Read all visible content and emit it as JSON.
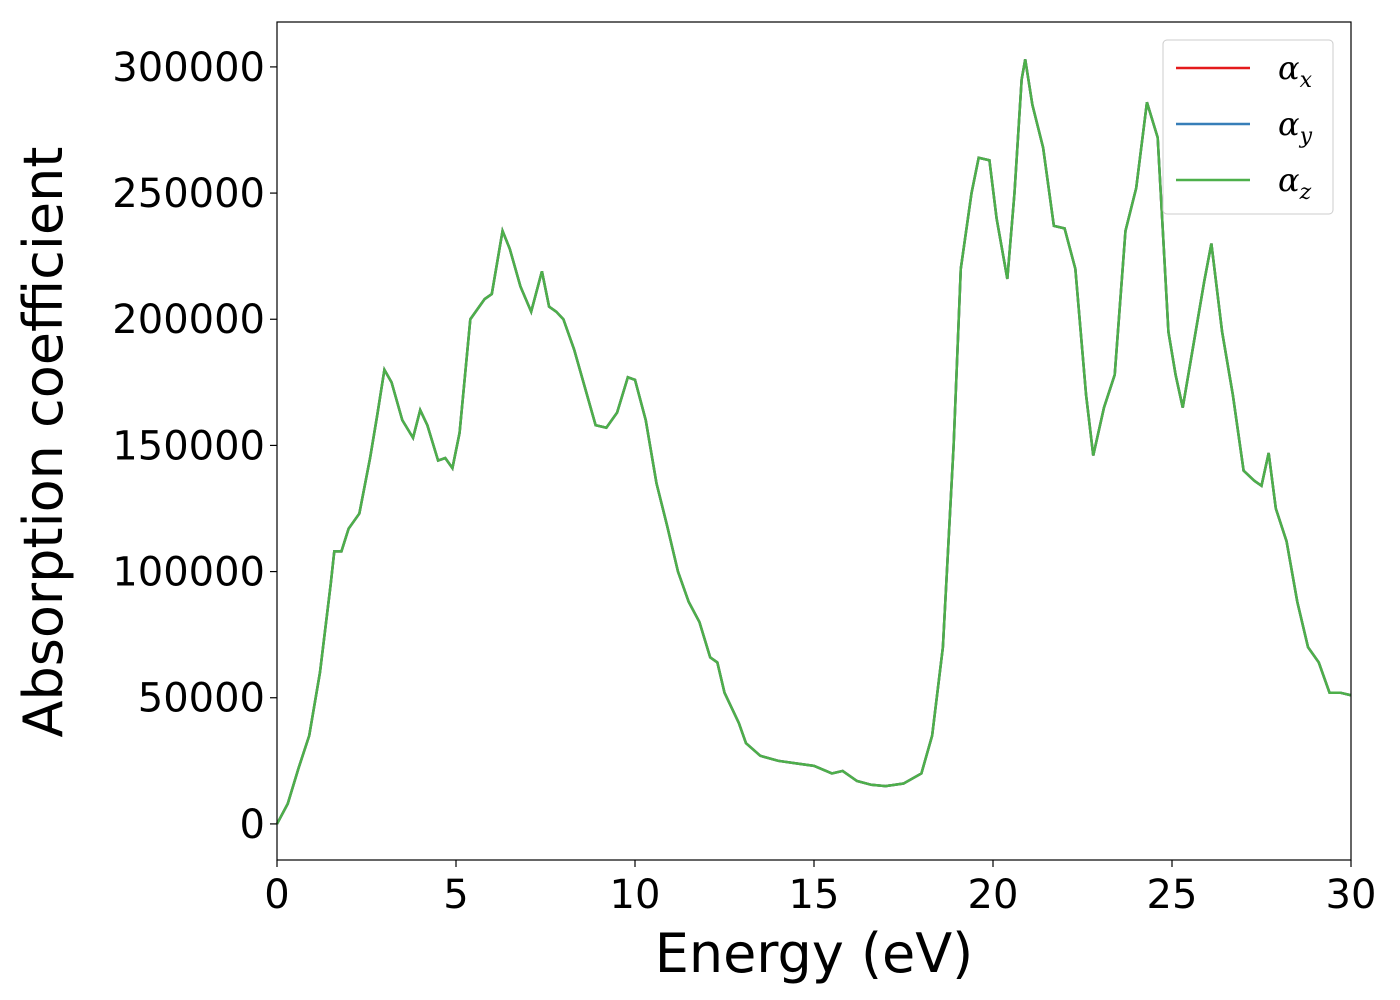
{
  "chart_data": {
    "type": "line",
    "xlabel": "Energy (eV)",
    "ylabel": "Absorption coefficient",
    "x": [
      0,
      0.3,
      0.6,
      0.9,
      1.2,
      1.5,
      1.6,
      1.8,
      2.0,
      2.3,
      2.6,
      2.8,
      3.0,
      3.2,
      3.5,
      3.8,
      4.0,
      4.2,
      4.5,
      4.7,
      4.9,
      5.1,
      5.4,
      5.6,
      5.8,
      6.0,
      6.3,
      6.5,
      6.8,
      7.1,
      7.4,
      7.6,
      7.8,
      8.0,
      8.3,
      8.6,
      8.9,
      9.2,
      9.5,
      9.8,
      10.0,
      10.3,
      10.6,
      10.9,
      11.2,
      11.5,
      11.8,
      12.1,
      12.3,
      12.5,
      12.9,
      13.1,
      13.5,
      14.0,
      14.5,
      15.0,
      15.5,
      15.8,
      16.2,
      16.6,
      17.0,
      17.5,
      18.0,
      18.3,
      18.6,
      18.9,
      19.1,
      19.4,
      19.6,
      19.9,
      20.1,
      20.4,
      20.6,
      20.8,
      20.9,
      21.1,
      21.4,
      21.7,
      22.0,
      22.3,
      22.6,
      22.8,
      23.1,
      23.4,
      23.7,
      24.0,
      24.3,
      24.6,
      24.9,
      25.1,
      25.3,
      25.6,
      25.9,
      26.1,
      26.4,
      26.7,
      27.0,
      27.3,
      27.5,
      27.7,
      27.9,
      28.2,
      28.5,
      28.8,
      29.1,
      29.4,
      29.7,
      30.0
    ],
    "series": [
      {
        "name": "αx",
        "color": "#e41a1c",
        "values": [
          0,
          8000,
          22000,
          35000,
          60000,
          95000,
          108000,
          108000,
          117000,
          123000,
          145000,
          162000,
          180000,
          175000,
          160000,
          153000,
          164000,
          158000,
          144000,
          145000,
          141000,
          155000,
          200000,
          204000,
          208000,
          210000,
          235000,
          228000,
          213000,
          203000,
          219000,
          205000,
          203000,
          200000,
          188000,
          173000,
          158000,
          157000,
          163000,
          177000,
          176000,
          160000,
          135000,
          118000,
          100000,
          88000,
          80000,
          66000,
          64000,
          52000,
          40000,
          32000,
          27000,
          25000,
          24000,
          23000,
          20000,
          21000,
          17000,
          15500,
          15000,
          16000,
          20000,
          35000,
          70000,
          150000,
          220000,
          250000,
          264000,
          263000,
          240000,
          216000,
          250000,
          295000,
          303000,
          285000,
          268000,
          237000,
          236000,
          220000,
          170000,
          146000,
          165000,
          178000,
          235000,
          252000,
          286000,
          272000,
          195000,
          178000,
          165000,
          190000,
          215000,
          230000,
          195000,
          170000,
          140000,
          136000,
          134000,
          147000,
          125000,
          112000,
          88000,
          70000,
          64000,
          52000,
          52000,
          51000
        ]
      },
      {
        "name": "αy",
        "color": "#377eb8",
        "values": [
          0,
          8000,
          22000,
          35000,
          60000,
          95000,
          108000,
          108000,
          117000,
          123000,
          145000,
          162000,
          180000,
          175000,
          160000,
          153000,
          164000,
          158000,
          144000,
          145000,
          141000,
          155000,
          200000,
          204000,
          208000,
          210000,
          235000,
          228000,
          213000,
          203000,
          219000,
          205000,
          203000,
          200000,
          188000,
          173000,
          158000,
          157000,
          163000,
          177000,
          176000,
          160000,
          135000,
          118000,
          100000,
          88000,
          80000,
          66000,
          64000,
          52000,
          40000,
          32000,
          27000,
          25000,
          24000,
          23000,
          20000,
          21000,
          17000,
          15500,
          15000,
          16000,
          20000,
          35000,
          70000,
          150000,
          220000,
          250000,
          264000,
          263000,
          240000,
          216000,
          250000,
          295000,
          303000,
          285000,
          268000,
          237000,
          236000,
          220000,
          170000,
          146000,
          165000,
          178000,
          235000,
          252000,
          286000,
          272000,
          195000,
          178000,
          165000,
          190000,
          215000,
          230000,
          195000,
          170000,
          140000,
          136000,
          134000,
          147000,
          125000,
          112000,
          88000,
          70000,
          64000,
          52000,
          52000,
          51000
        ]
      },
      {
        "name": "αz",
        "color": "#4daf4a",
        "values": [
          0,
          8000,
          22000,
          35000,
          60000,
          95000,
          108000,
          108000,
          117000,
          123000,
          145000,
          162000,
          180000,
          175000,
          160000,
          153000,
          164000,
          158000,
          144000,
          145000,
          141000,
          155000,
          200000,
          204000,
          208000,
          210000,
          235000,
          228000,
          213000,
          203000,
          219000,
          205000,
          203000,
          200000,
          188000,
          173000,
          158000,
          157000,
          163000,
          177000,
          176000,
          160000,
          135000,
          118000,
          100000,
          88000,
          80000,
          66000,
          64000,
          52000,
          40000,
          32000,
          27000,
          25000,
          24000,
          23000,
          20000,
          21000,
          17000,
          15500,
          15000,
          16000,
          20000,
          35000,
          70000,
          150000,
          220000,
          250000,
          264000,
          263000,
          240000,
          216000,
          250000,
          295000,
          303000,
          285000,
          268000,
          237000,
          236000,
          220000,
          170000,
          146000,
          165000,
          178000,
          235000,
          252000,
          286000,
          272000,
          195000,
          178000,
          165000,
          190000,
          215000,
          230000,
          195000,
          170000,
          140000,
          136000,
          134000,
          147000,
          125000,
          112000,
          88000,
          70000,
          64000,
          52000,
          52000,
          51000
        ]
      }
    ],
    "xlim": [
      0,
      30
    ],
    "xticks": [
      0,
      5,
      10,
      15,
      20,
      25,
      30
    ],
    "ylim": [
      -14300,
      317800
    ],
    "yticks": [
      0,
      50000,
      100000,
      150000,
      200000,
      250000,
      300000
    ],
    "legend": "upper right",
    "grid": false
  }
}
